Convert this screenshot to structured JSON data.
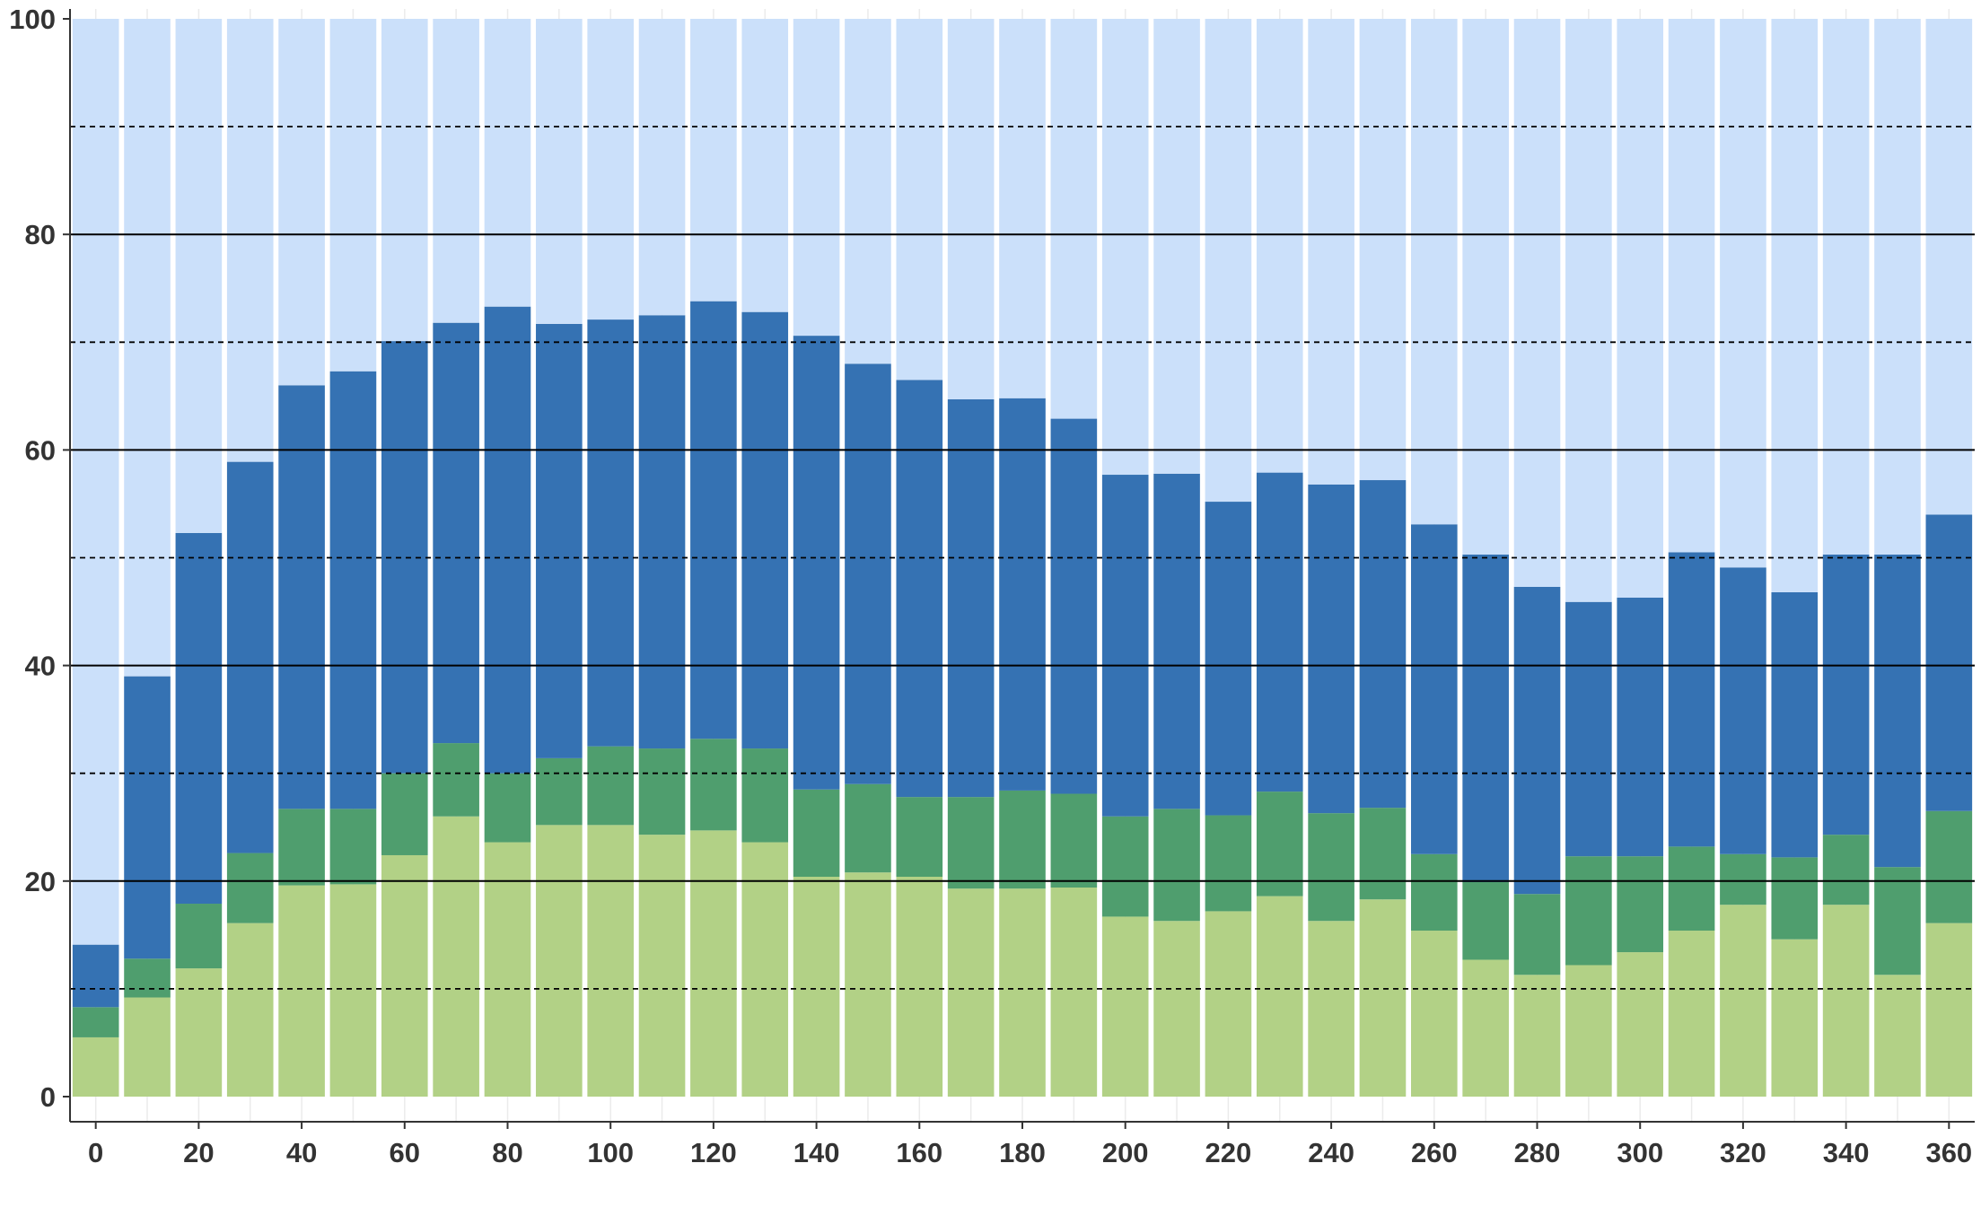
{
  "chart_data": {
    "type": "bar",
    "stacked": true,
    "title": "",
    "xlabel": "",
    "ylabel": "",
    "x": [
      0,
      10,
      20,
      30,
      40,
      50,
      60,
      70,
      80,
      90,
      100,
      110,
      120,
      130,
      140,
      150,
      160,
      170,
      180,
      190,
      200,
      210,
      220,
      230,
      240,
      250,
      260,
      270,
      280,
      290,
      300,
      310,
      320,
      330,
      340,
      350,
      360
    ],
    "xticks": [
      0,
      20,
      40,
      60,
      80,
      100,
      120,
      140,
      160,
      180,
      200,
      220,
      240,
      260,
      280,
      300,
      320,
      340,
      360
    ],
    "yticks": [
      0,
      20,
      40,
      60,
      80,
      100
    ],
    "xlim": [
      -5,
      365
    ],
    "ylim": [
      0,
      100
    ],
    "grid": {
      "solid": [
        20,
        40,
        60,
        80
      ],
      "dashed": [
        10,
        30,
        50,
        70,
        90
      ]
    },
    "legend": "none",
    "series": [
      {
        "color": "#b2d186",
        "values": [
          5.5,
          9.2,
          11.9,
          16.1,
          19.6,
          19.7,
          22.4,
          26.0,
          23.6,
          25.2,
          25.2,
          24.3,
          24.7,
          23.6,
          20.4,
          20.8,
          20.4,
          19.3,
          19.3,
          19.4,
          16.7,
          16.3,
          17.2,
          18.6,
          16.3,
          18.3,
          15.4,
          12.7,
          11.3,
          12.2,
          13.4,
          15.4,
          17.8,
          14.6,
          17.8,
          11.3,
          16.1
        ]
      },
      {
        "color": "#4f9e6e",
        "values": [
          2.8,
          3.6,
          6.0,
          6.5,
          7.1,
          7.0,
          7.6,
          6.8,
          6.4,
          6.2,
          7.3,
          8.0,
          8.5,
          8.7,
          8.1,
          8.2,
          7.4,
          8.5,
          9.1,
          8.7,
          9.3,
          10.4,
          8.9,
          9.7,
          10.0,
          8.5,
          7.1,
          7.2,
          7.5,
          10.1,
          8.9,
          7.8,
          4.7,
          7.6,
          6.5,
          10.0,
          10.4
        ]
      },
      {
        "color": "#3572b3",
        "values": [
          5.8,
          26.2,
          34.4,
          36.3,
          39.3,
          40.6,
          40.1,
          39.0,
          43.3,
          40.3,
          39.6,
          40.2,
          40.6,
          40.5,
          42.1,
          39.0,
          38.7,
          36.9,
          36.4,
          34.8,
          31.7,
          31.1,
          29.1,
          29.6,
          30.5,
          30.4,
          30.6,
          30.4,
          28.5,
          23.6,
          24.0,
          27.3,
          26.6,
          24.6,
          26.0,
          29.0,
          27.5
        ]
      },
      {
        "color": "#cbe0fa",
        "values": [
          85.9,
          61.0,
          47.7,
          41.1,
          34.0,
          32.7,
          29.9,
          28.2,
          26.7,
          28.3,
          27.9,
          27.5,
          26.2,
          27.2,
          29.4,
          32.0,
          33.5,
          35.3,
          35.2,
          37.1,
          42.3,
          42.2,
          44.8,
          42.1,
          43.2,
          42.8,
          46.9,
          49.7,
          52.7,
          54.1,
          53.7,
          49.5,
          50.9,
          53.2,
          49.7,
          49.7,
          46.0
        ]
      }
    ]
  }
}
